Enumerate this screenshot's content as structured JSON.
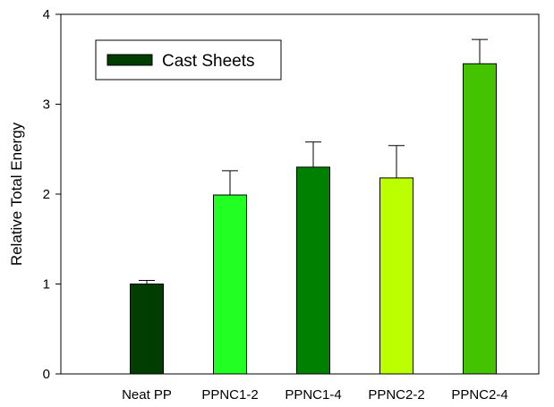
{
  "chart_data": {
    "type": "bar",
    "title": "",
    "xlabel": "",
    "ylabel": "Relative Total Energy",
    "ylim": [
      0,
      4
    ],
    "yticks": [
      0,
      1,
      2,
      3,
      4
    ],
    "grid": false,
    "legend": {
      "placement": "top-left",
      "label": "Cast Sheets",
      "color": "#003d00"
    },
    "categories": [
      "Neat PP",
      "PPNC1-2",
      "PPNC1-4",
      "PPNC2-2",
      "PPNC2-4"
    ],
    "values": [
      1.0,
      1.99,
      2.3,
      2.18,
      3.45
    ],
    "error_upper": [
      1.04,
      2.26,
      2.58,
      2.54,
      3.72
    ],
    "colors": [
      "#003d00",
      "#22ff22",
      "#008000",
      "#bbff00",
      "#44c400"
    ]
  }
}
